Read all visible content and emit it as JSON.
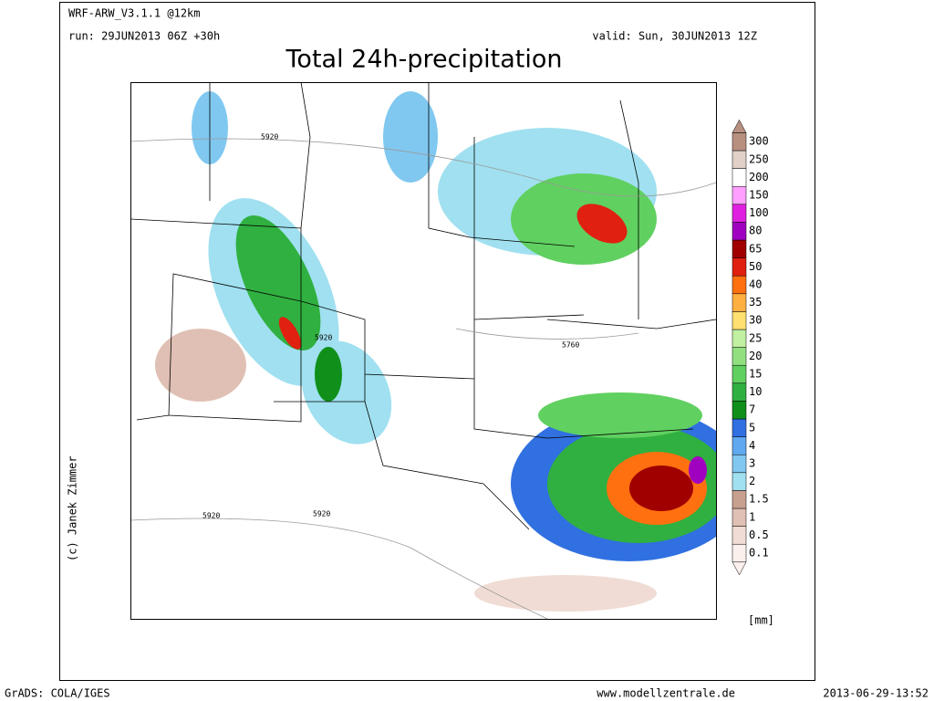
{
  "header": {
    "model": "WRF-ARW_V3.1.1 @12km",
    "run": "run: 29JUN2013 06Z +30h",
    "valid": "valid: Sun, 30JUN2013 12Z",
    "title": "Total 24h-precipitation"
  },
  "map": {
    "contour_labels": [
      "5920",
      "5920",
      "5920",
      "5920",
      "5760"
    ],
    "credit": "(c) Janek Zimmer"
  },
  "legend": {
    "unit": "[mm]",
    "levels": [
      {
        "label": "0.1",
        "color": "#fbf0ec"
      },
      {
        "label": "0.5",
        "color": "#f0dcd4"
      },
      {
        "label": "1",
        "color": "#e0c0b4"
      },
      {
        "label": "1.5",
        "color": "#c8a090"
      },
      {
        "label": "2",
        "color": "#a0e0f0"
      },
      {
        "label": "3",
        "color": "#80c8f0"
      },
      {
        "label": "4",
        "color": "#60a8f0"
      },
      {
        "label": "5",
        "color": "#3070e0"
      },
      {
        "label": "7",
        "color": "#10901a"
      },
      {
        "label": "10",
        "color": "#30b040"
      },
      {
        "label": "15",
        "color": "#60d060"
      },
      {
        "label": "20",
        "color": "#90e080"
      },
      {
        "label": "25",
        "color": "#c0f0a0"
      },
      {
        "label": "30",
        "color": "#ffe070"
      },
      {
        "label": "35",
        "color": "#ffb040"
      },
      {
        "label": "40",
        "color": "#ff7010"
      },
      {
        "label": "50",
        "color": "#e02010"
      },
      {
        "label": "65",
        "color": "#a00000"
      },
      {
        "label": "80",
        "color": "#a000c0"
      },
      {
        "label": "100",
        "color": "#e020e0"
      },
      {
        "label": "150",
        "color": "#ffa0ff"
      },
      {
        "label": "200",
        "color": "#ffffff"
      },
      {
        "label": "250",
        "color": "#e0d0c8"
      },
      {
        "label": "300",
        "color": "#b89080"
      }
    ]
  },
  "footer": {
    "left": "GrADS: COLA/IGES",
    "center": "www.modellzentrale.de",
    "right": "2013-06-29-13:52"
  }
}
